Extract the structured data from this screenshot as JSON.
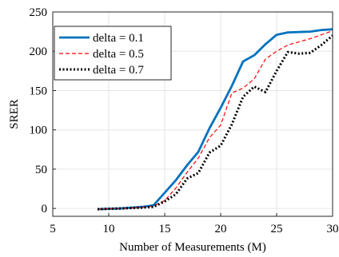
{
  "chart_data": {
    "type": "line",
    "xlabel": "Number of Measurements (M)",
    "ylabel": "SRER",
    "xlim": [
      5,
      30
    ],
    "ylim": [
      -10,
      250
    ],
    "xticks": [
      5,
      10,
      15,
      20,
      25,
      30
    ],
    "yticks": [
      0,
      50,
      100,
      150,
      200,
      250
    ],
    "grid": true,
    "legend_position": "top-left",
    "series": [
      {
        "name": "delta = 0.1",
        "color": "#0072BD",
        "style": "solid",
        "x": [
          9,
          10,
          11,
          12,
          13,
          14,
          15,
          16,
          17,
          18,
          19,
          20,
          21,
          22,
          23,
          24,
          25,
          26,
          27,
          28,
          29,
          30
        ],
        "y": [
          -1,
          -0.5,
          0,
          1,
          2,
          4,
          20,
          36,
          55,
          72,
          102,
          128,
          156,
          187,
          195,
          209,
          221,
          224,
          224.5,
          225,
          227,
          228
        ]
      },
      {
        "name": "delta = 0.5",
        "color": "#ff0000",
        "style": "dashed",
        "x": [
          9,
          10,
          11,
          12,
          13,
          14,
          15,
          16,
          17,
          18,
          19,
          20,
          21,
          22,
          23,
          24,
          25,
          26,
          27,
          28,
          29,
          30
        ],
        "y": [
          -1,
          -0.5,
          0,
          0.5,
          1.5,
          3,
          10,
          26,
          46,
          64,
          90,
          106,
          147,
          153,
          165,
          190,
          200,
          208,
          212,
          216,
          221,
          226
        ]
      },
      {
        "name": "delta = 0.7",
        "color": "#000000",
        "style": "dotted",
        "x": [
          9,
          10,
          11,
          12,
          13,
          14,
          15,
          16,
          17,
          18,
          19,
          20,
          21,
          22,
          23,
          24,
          25,
          26,
          27,
          28,
          29,
          30
        ],
        "y": [
          -1,
          -0.5,
          0,
          0.5,
          1,
          2,
          9,
          18,
          38,
          45,
          71,
          80,
          107,
          142,
          155,
          148,
          175,
          199,
          197,
          198,
          208,
          220
        ]
      }
    ]
  }
}
